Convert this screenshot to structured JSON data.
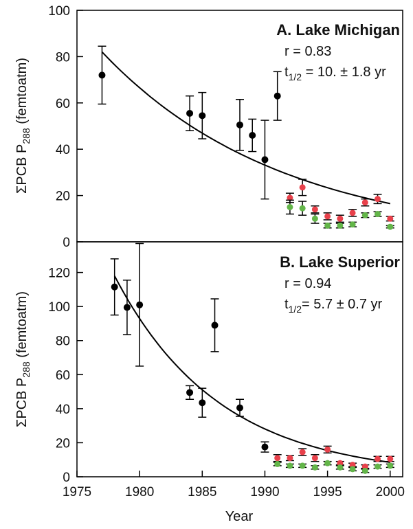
{
  "chart_data": [
    {
      "type": "scatter",
      "title": "A.  Lake Michigan",
      "ylabel": "ΣPCB P",
      "ylabel_sub": "288",
      "ylabel_unit": " (femtoatm)",
      "ylim": [
        0,
        100
      ],
      "yticks": [
        0,
        20,
        40,
        60,
        80,
        100
      ],
      "xlim": [
        1975,
        2001
      ],
      "stats": {
        "r": "r = 0.83",
        "thalf_pre": "t",
        "thalf_sub": "1/2",
        "thalf_post": " = 10. ± 1.8 yr"
      },
      "fit": {
        "type": "exponential-decay",
        "x": [
          1977,
          2000
        ],
        "y": [
          82,
          16.5
        ]
      },
      "series": [
        {
          "color": "#000000",
          "x": [
            1977,
            1984,
            1985,
            1988,
            1989,
            1990,
            1991
          ],
          "y": [
            72,
            55.5,
            54.5,
            50.5,
            46,
            35.5,
            63
          ],
          "err": [
            12.5,
            7.5,
            10,
            11,
            7,
            17,
            10.5
          ]
        },
        {
          "color": "#e8414b",
          "x": [
            1992,
            1993,
            1994,
            1995,
            1996,
            1997,
            1998,
            1999,
            2000
          ],
          "y": [
            19,
            23.5,
            14,
            11,
            10,
            12.5,
            17,
            18.5,
            10
          ],
          "err": [
            2,
            3.5,
            1.5,
            1.5,
            1.5,
            1.5,
            1.5,
            2,
            1
          ]
        },
        {
          "color": "#63b549",
          "x": [
            1992,
            1993,
            1994,
            1995,
            1996,
            1997,
            1998,
            1999,
            2000
          ],
          "y": [
            15,
            14.5,
            10,
            7,
            7,
            7.5,
            11.5,
            12,
            6.5
          ],
          "err": [
            3,
            3,
            2,
            1,
            1,
            1,
            1,
            1,
            0.5
          ]
        }
      ]
    },
    {
      "type": "scatter",
      "title": "B.  Lake Superior",
      "xlabel": "Year",
      "ylabel": "ΣPCB P",
      "ylabel_sub": "288",
      "ylabel_unit": " (femtoatm)",
      "ylim": [
        0,
        138
      ],
      "yticks": [
        0,
        20,
        40,
        60,
        80,
        100,
        120
      ],
      "xlim": [
        1975,
        2001
      ],
      "xticks": [
        1975,
        1980,
        1985,
        1990,
        1995,
        2000
      ],
      "stats": {
        "r": "r = 0.94",
        "thalf_pre": "t",
        "thalf_sub": "1/2",
        "thalf_post": "= 5.7 ± 0.7 yr"
      },
      "fit": {
        "type": "exponential-decay",
        "x": [
          1978,
          2000
        ],
        "y": [
          118,
          8.5
        ]
      },
      "series": [
        {
          "color": "#000000",
          "x": [
            1978,
            1979,
            1980,
            1984,
            1985,
            1986,
            1988,
            1990
          ],
          "y": [
            111.5,
            99.5,
            101,
            49.5,
            43.5,
            89,
            40.5,
            17.5
          ],
          "err": [
            16.5,
            16,
            36,
            4,
            8.5,
            15.5,
            5,
            3
          ]
        },
        {
          "color": "#e8414b",
          "x": [
            1991,
            1992,
            1993,
            1994,
            1995,
            1996,
            1997,
            1998,
            1999,
            2000
          ],
          "y": [
            11,
            11,
            14.5,
            11,
            16,
            8,
            7,
            6,
            10.5,
            10.5
          ],
          "err": [
            2,
            1.5,
            2,
            2,
            2,
            1,
            1,
            1,
            1.5,
            1.5
          ]
        },
        {
          "color": "#63b549",
          "x": [
            1991,
            1992,
            1993,
            1994,
            1995,
            1996,
            1997,
            1998,
            1999,
            2000
          ],
          "y": [
            7.5,
            6.5,
            6.5,
            5.5,
            8,
            5.5,
            4.5,
            3.5,
            6,
            6.5
          ],
          "err": [
            1,
            1,
            1,
            1,
            1,
            1,
            1,
            1,
            1,
            1
          ]
        }
      ]
    }
  ]
}
